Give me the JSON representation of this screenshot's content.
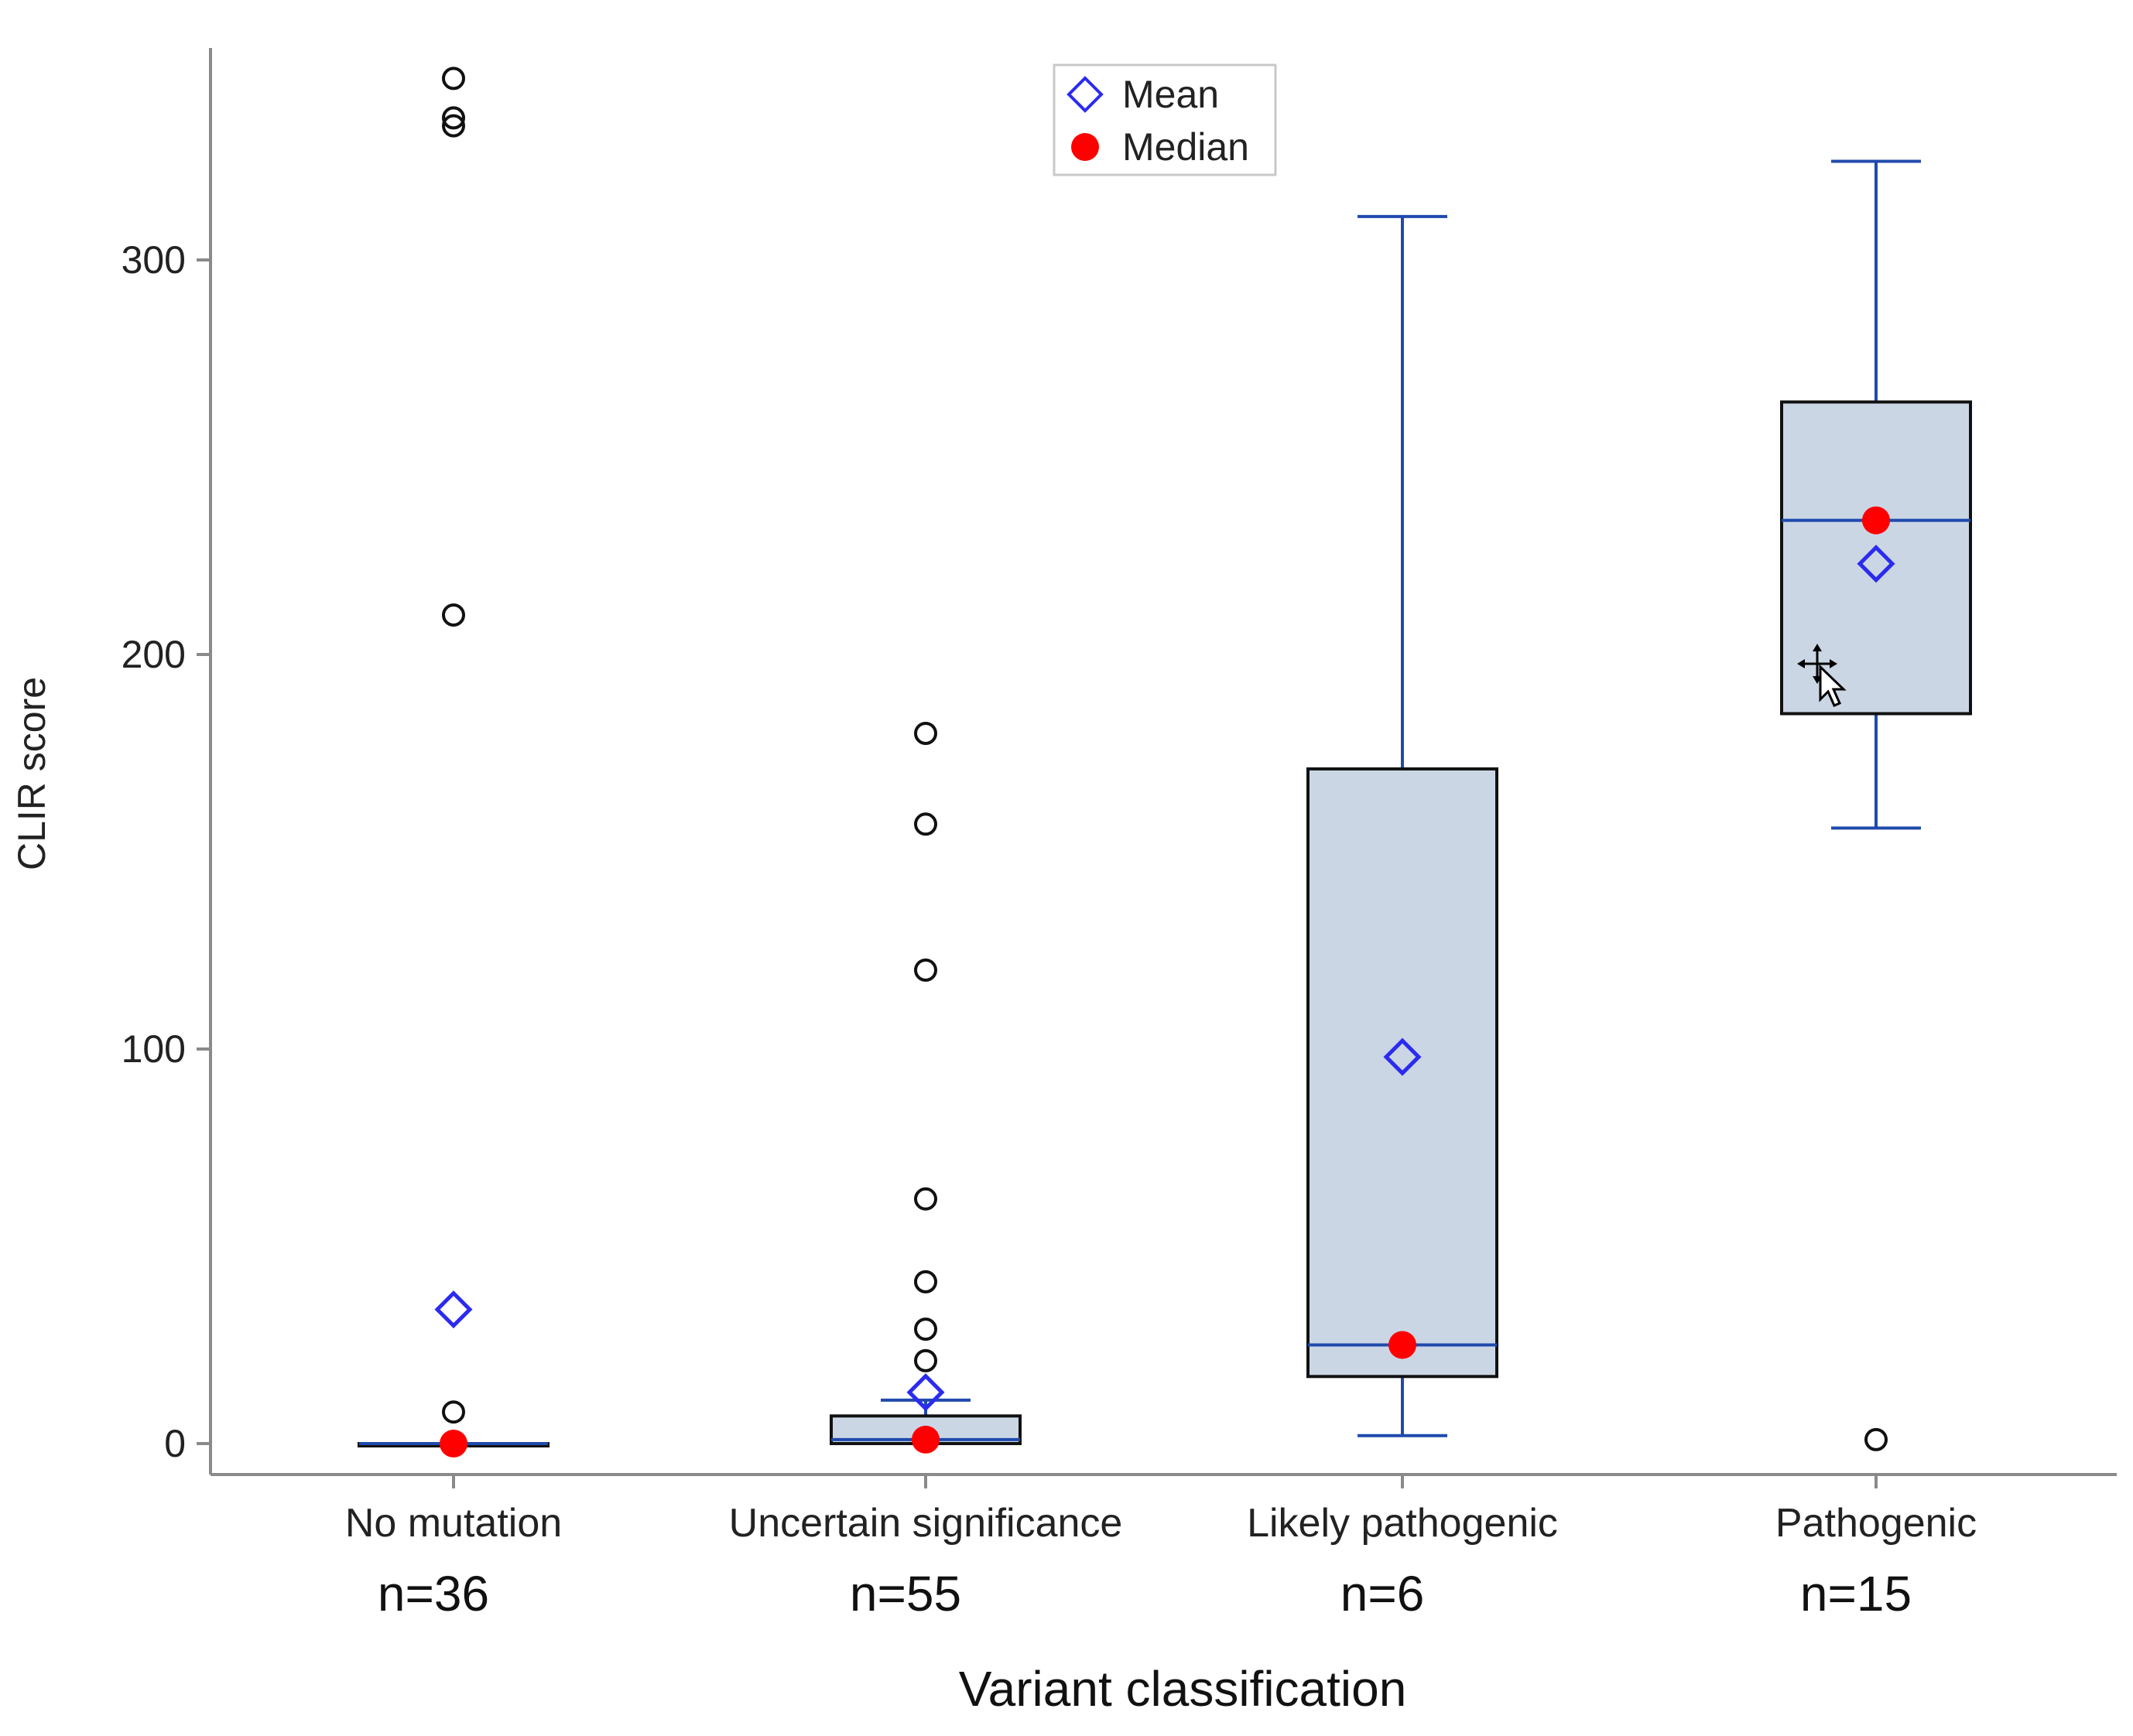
{
  "chart_data": {
    "type": "box",
    "xlabel": "Variant classification",
    "ylabel": "CLIR score",
    "ylim": [
      -8,
      352
    ],
    "yticks": [
      0,
      100,
      200,
      300
    ],
    "colors": {
      "box_fill": "#cbd6e5",
      "box_edge": "#111111",
      "whisker": "#1f4aad",
      "mean": "#2b2bf0",
      "median": "#ff0000",
      "outlier": "#111111",
      "axis": "#8a8a8a"
    },
    "legend": {
      "position": "top-center",
      "entries": [
        {
          "label": "Mean",
          "marker": "diamond-icon"
        },
        {
          "label": "Median",
          "marker": "filled-circle-icon"
        }
      ]
    },
    "groups": [
      {
        "category": "No mutation",
        "n_label": "n=36",
        "q1": 0,
        "median": 0,
        "q3": 0,
        "whisker_low": 0,
        "whisker_high": 0,
        "mean": 34,
        "outliers": [
          8,
          210,
          334,
          336,
          346
        ]
      },
      {
        "category": "Uncertain significance",
        "n_label": "n=55",
        "q1": 0,
        "median": 1,
        "q3": 7,
        "whisker_low": 0,
        "whisker_high": 11,
        "mean": 13,
        "outliers": [
          21,
          29,
          41,
          62,
          120,
          157,
          180
        ]
      },
      {
        "category": "Likely pathogenic",
        "n_label": "n=6",
        "q1": 17,
        "median": 25,
        "q3": 171,
        "whisker_low": 2,
        "whisker_high": 311,
        "mean": 98,
        "outliers": []
      },
      {
        "category": "Pathogenic",
        "n_label": "n=15",
        "q1": 185,
        "median": 234,
        "q3": 264,
        "whisker_low": 156,
        "whisker_high": 325,
        "mean": 223,
        "outliers": [
          1
        ]
      }
    ]
  }
}
